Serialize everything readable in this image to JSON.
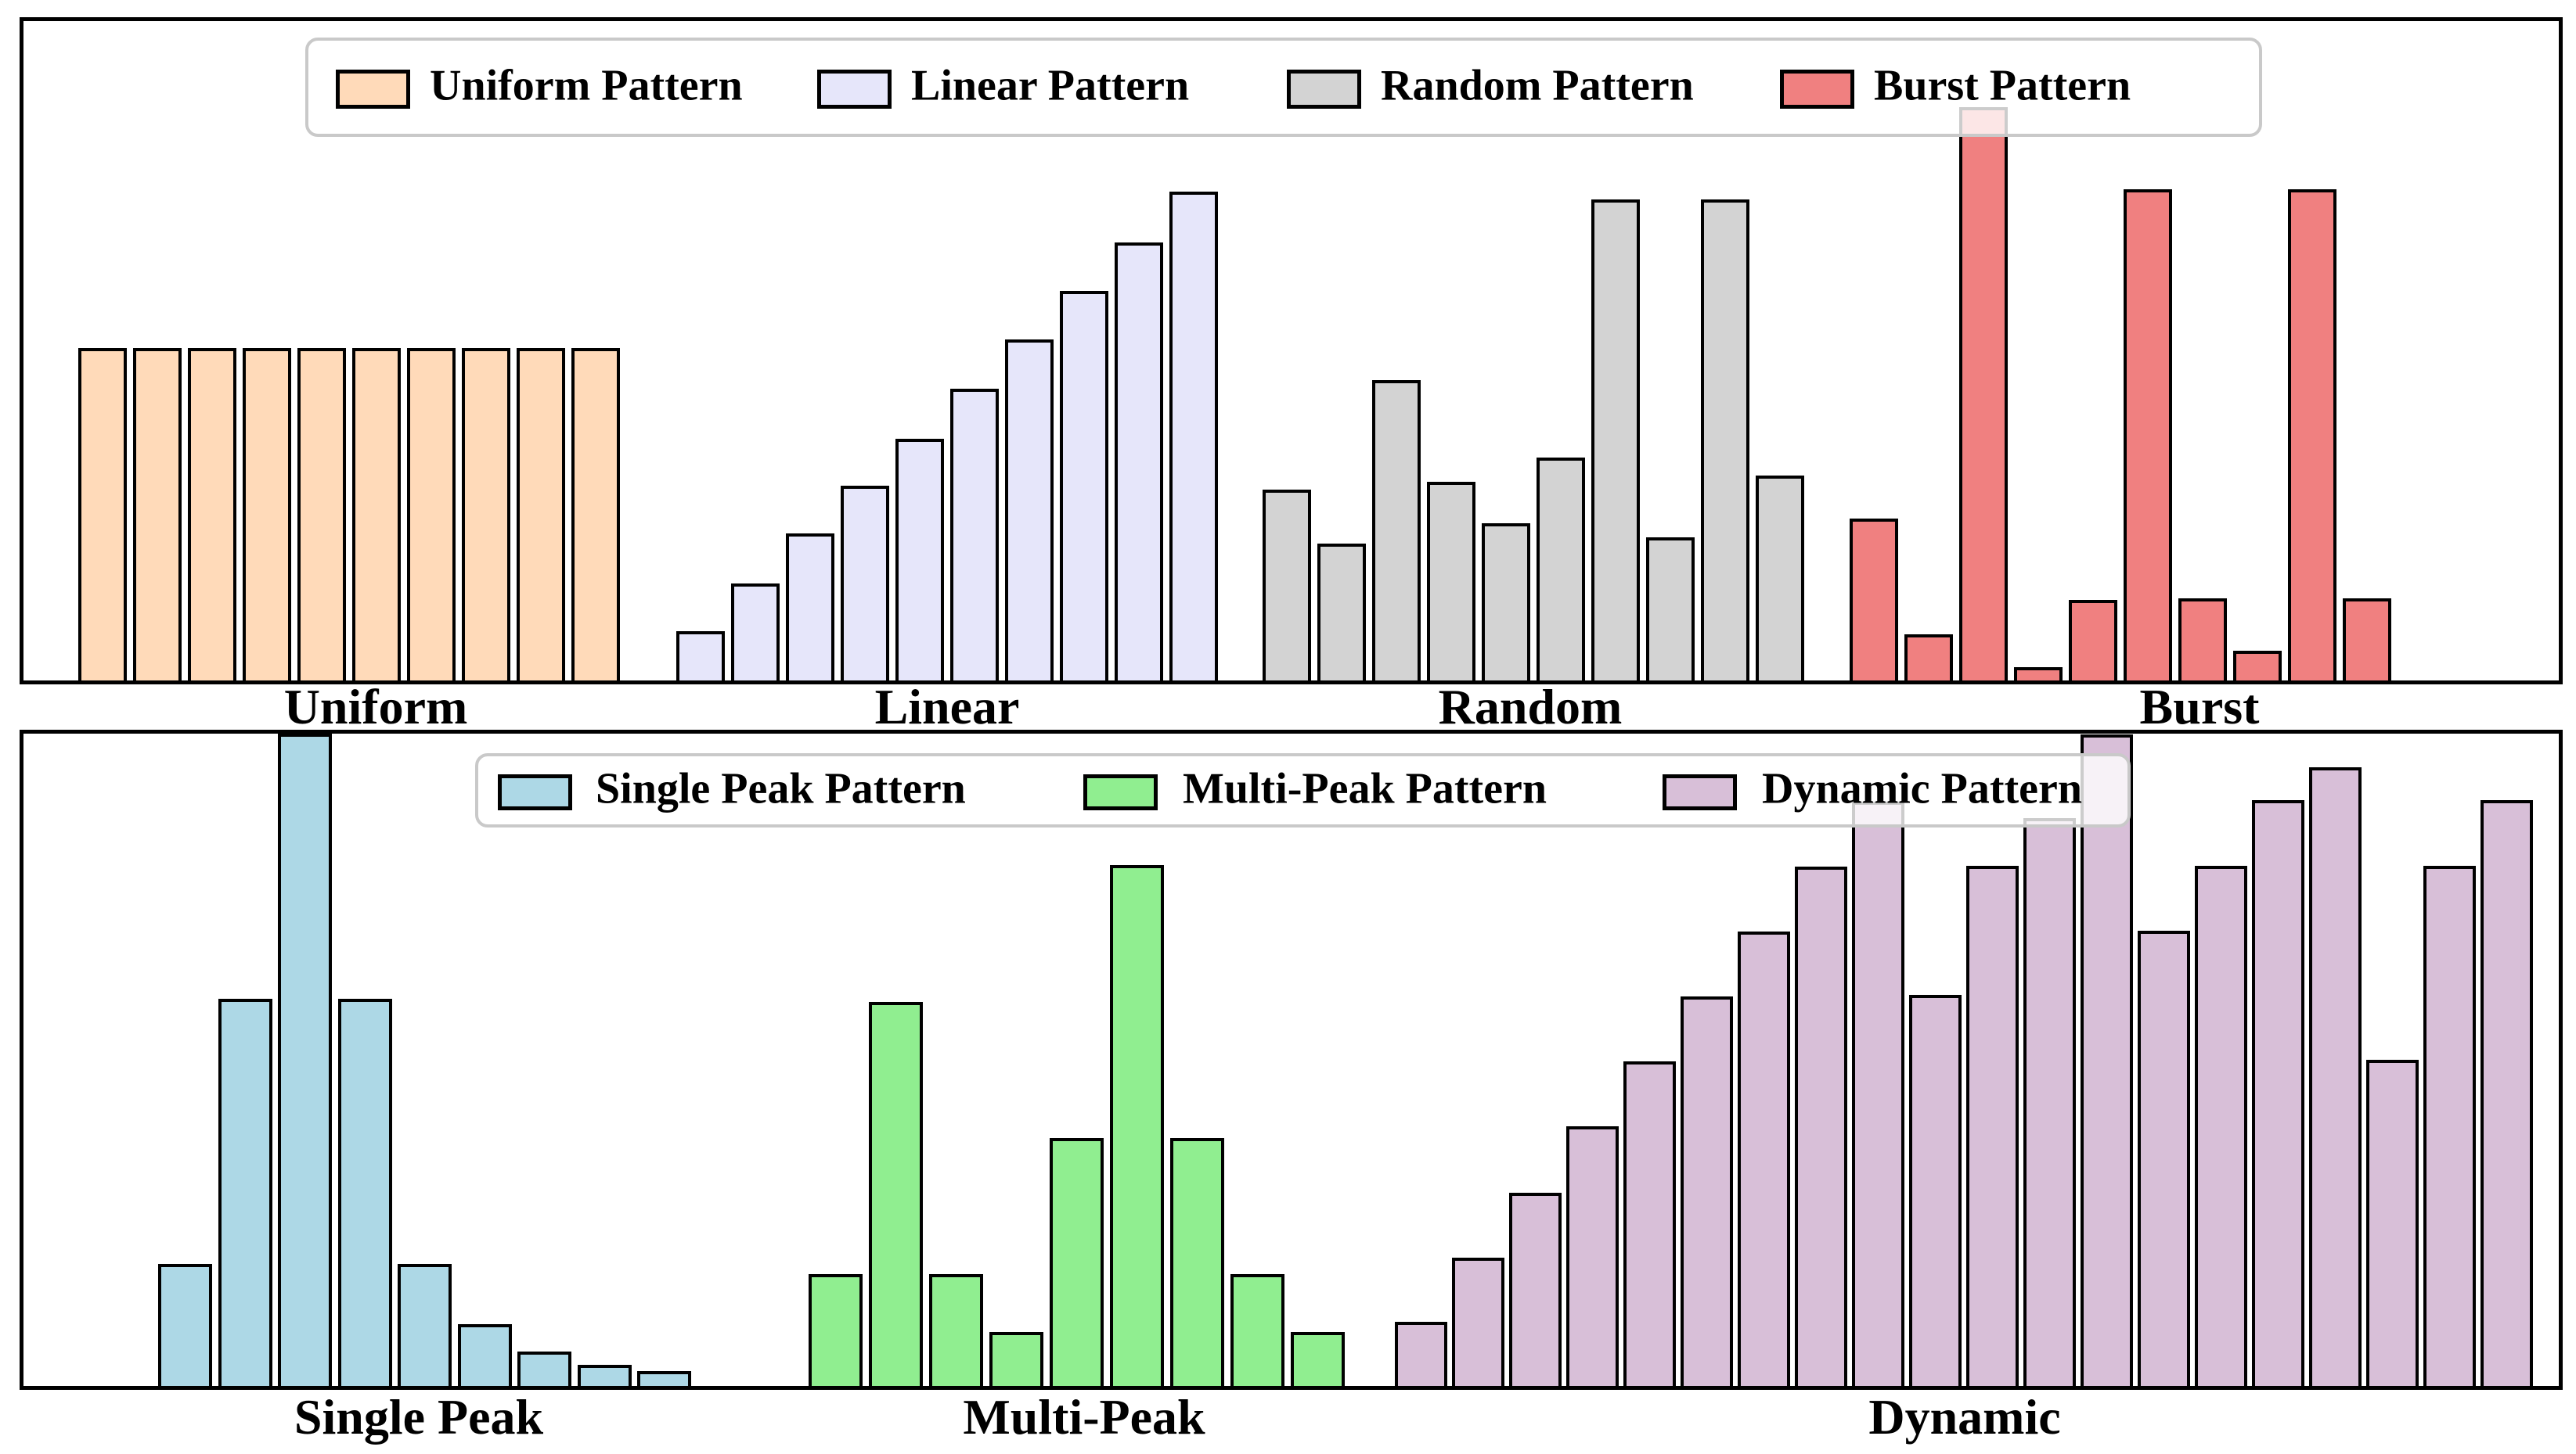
{
  "figure": {
    "background": "#ffffff",
    "edge_color": "#000000",
    "legend_border_color": "#c9c9c9",
    "legend_background": "rgba(255,255,255,0.8)"
  },
  "chart_data": [
    {
      "type": "bar",
      "panel": "top",
      "title": "",
      "xlabel": "",
      "ylabel": "",
      "axis_ticks": "none",
      "grid": false,
      "legend_position": "upper center, horizontal",
      "categories": [
        "Uniform",
        "Linear",
        "Random",
        "Burst"
      ],
      "groups": [
        {
          "name": "Uniform",
          "legend_label": "Uniform Pattern",
          "color": "#FFDAB9",
          "height_pct": [
            50.4,
            50.4,
            50.4,
            50.4,
            50.4,
            50.4,
            50.4,
            50.4,
            50.4,
            50.4
          ]
        },
        {
          "name": "Linear",
          "legend_label": "Linear Pattern",
          "color": "#E6E6FA",
          "height_pct": [
            7.5,
            14.7,
            22.3,
            29.5,
            36.7,
            44.3,
            51.7,
            59.1,
            66.4,
            74.1
          ]
        },
        {
          "name": "Random",
          "legend_label": "Random Pattern",
          "color": "#D3D3D3",
          "height_pct": [
            29.0,
            20.8,
            45.6,
            30.1,
            23.8,
            33.8,
            72.9,
            21.7,
            72.9,
            31.1
          ]
        },
        {
          "name": "Burst",
          "legend_label": "Burst Pattern",
          "color": "#F08080",
          "height_pct": [
            24.6,
            7.0,
            87.0,
            2.0,
            12.2,
            74.5,
            12.4,
            4.5,
            74.5,
            12.4
          ]
        }
      ]
    },
    {
      "type": "bar",
      "panel": "bottom",
      "title": "",
      "xlabel": "",
      "ylabel": "",
      "axis_ticks": "none",
      "grid": false,
      "legend_position": "upper center, horizontal",
      "categories": [
        "Single Peak",
        "Multi-Peak",
        "Dynamic"
      ],
      "groups": [
        {
          "name": "Single Peak",
          "legend_label": "Single Peak Pattern",
          "color": "#ADD8E6",
          "height_pct": [
            18.7,
            59.4,
            100.0,
            59.4,
            18.7,
            9.5,
            5.3,
            3.2,
            2.3
          ]
        },
        {
          "name": "Multi-Peak",
          "legend_label": "Multi-Peak Pattern",
          "color": "#90EE90",
          "height_pct": [
            17.2,
            58.9,
            17.2,
            8.3,
            38.0,
            79.9,
            38.0,
            17.2,
            8.3
          ]
        },
        {
          "name": "Dynamic",
          "legend_label": "Dynamic Pattern",
          "color": "#D8BFD8",
          "height_pct": [
            9.8,
            19.7,
            29.6,
            39.8,
            49.8,
            59.7,
            69.7,
            79.6,
            89.6,
            60.0,
            79.7,
            87.0,
            99.9,
            69.8,
            79.7,
            89.8,
            94.8,
            50.0,
            79.7,
            89.8
          ]
        }
      ]
    }
  ]
}
